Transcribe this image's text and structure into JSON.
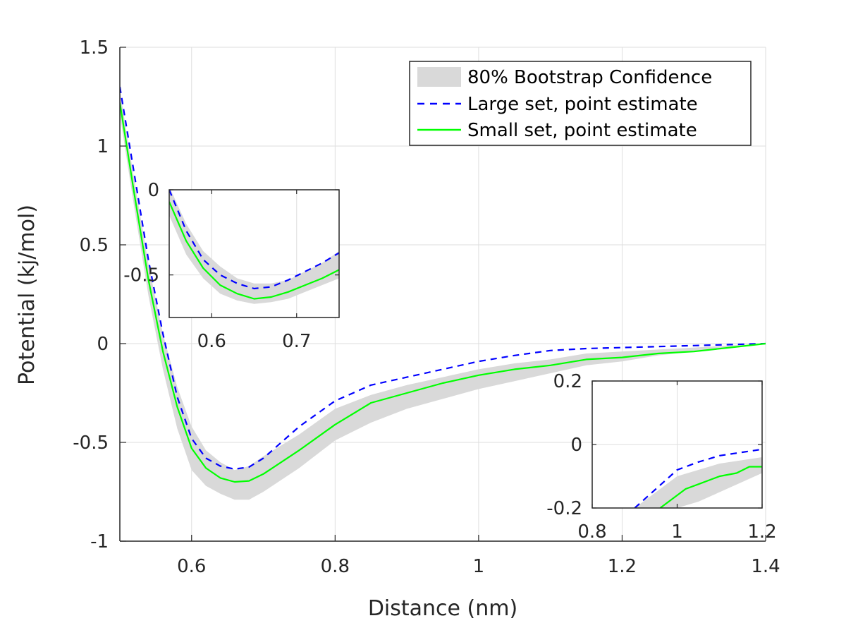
{
  "chart_data": [
    {
      "id": "main",
      "type": "line",
      "xlabel": "Distance (nm)",
      "ylabel": "Potential (kj/mol)",
      "xlim": [
        0.5,
        1.4
      ],
      "ylim": [
        -1,
        1.5
      ],
      "xticks": [
        0.6,
        0.8,
        1,
        1.2,
        1.4
      ],
      "xtick_labels": [
        "0.6",
        "0.8",
        "1",
        "1.2",
        "1.4"
      ],
      "yticks": [
        -1,
        -0.5,
        0,
        0.5,
        1,
        1.5
      ],
      "ytick_labels": [
        "-1",
        "-0.5",
        "0",
        "0.5",
        "1",
        "1.5"
      ],
      "grid": true,
      "legend_position": "top-right",
      "legend": [
        "80% Bootstrap Confidence",
        "Large set, point estimate",
        "Small set, point estimate"
      ],
      "band": {
        "name": "80% Bootstrap Confidence",
        "x": [
          0.5,
          0.52,
          0.54,
          0.56,
          0.58,
          0.6,
          0.62,
          0.64,
          0.66,
          0.68,
          0.7,
          0.75,
          0.8,
          0.85,
          0.9,
          0.95,
          1.0,
          1.05,
          1.1,
          1.15,
          1.2,
          1.25,
          1.3,
          1.35,
          1.4
        ],
        "upper": [
          1.28,
          0.83,
          0.4,
          0.05,
          -0.22,
          -0.42,
          -0.54,
          -0.6,
          -0.64,
          -0.62,
          -0.57,
          -0.46,
          -0.33,
          -0.26,
          -0.21,
          -0.17,
          -0.13,
          -0.1,
          -0.08,
          -0.05,
          -0.04,
          -0.03,
          -0.02,
          -0.01,
          0.0
        ],
        "lower": [
          1.16,
          0.69,
          0.24,
          -0.13,
          -0.43,
          -0.64,
          -0.72,
          -0.76,
          -0.79,
          -0.79,
          -0.75,
          -0.63,
          -0.49,
          -0.4,
          -0.33,
          -0.28,
          -0.23,
          -0.19,
          -0.15,
          -0.11,
          -0.09,
          -0.06,
          -0.04,
          -0.02,
          0.0
        ]
      },
      "series": [
        {
          "name": "Large set, point estimate",
          "color": "#0000ff",
          "style": "dashed",
          "x": [
            0.5,
            0.52,
            0.54,
            0.56,
            0.58,
            0.6,
            0.62,
            0.64,
            0.66,
            0.68,
            0.7,
            0.75,
            0.8,
            0.85,
            0.9,
            0.95,
            1.0,
            1.05,
            1.1,
            1.15,
            1.2,
            1.25,
            1.3,
            1.35,
            1.4
          ],
          "y": [
            1.3,
            0.86,
            0.42,
            0.05,
            -0.27,
            -0.48,
            -0.58,
            -0.62,
            -0.635,
            -0.625,
            -0.58,
            -0.42,
            -0.29,
            -0.21,
            -0.17,
            -0.13,
            -0.09,
            -0.06,
            -0.035,
            -0.025,
            -0.02,
            -0.015,
            -0.01,
            -0.005,
            0.0
          ]
        },
        {
          "name": "Small set, point estimate",
          "color": "#00ff00",
          "style": "solid",
          "x": [
            0.5,
            0.52,
            0.54,
            0.56,
            0.58,
            0.6,
            0.62,
            0.64,
            0.66,
            0.68,
            0.7,
            0.75,
            0.8,
            0.85,
            0.9,
            0.95,
            1.0,
            1.05,
            1.1,
            1.15,
            1.2,
            1.25,
            1.3,
            1.35,
            1.4
          ],
          "y": [
            1.22,
            0.76,
            0.32,
            -0.04,
            -0.32,
            -0.53,
            -0.63,
            -0.68,
            -0.7,
            -0.695,
            -0.66,
            -0.54,
            -0.41,
            -0.3,
            -0.25,
            -0.2,
            -0.16,
            -0.13,
            -0.11,
            -0.08,
            -0.07,
            -0.05,
            -0.04,
            -0.02,
            0.0
          ]
        }
      ]
    },
    {
      "id": "inset-minimum",
      "type": "line",
      "xlim": [
        0.55,
        0.75
      ],
      "ylim": [
        -0.75,
        0.0
      ],
      "xticks": [
        0.6,
        0.7
      ],
      "xtick_labels": [
        "0.6",
        "0.7"
      ],
      "yticks": [
        0,
        -0.5
      ],
      "ytick_labels": [
        "0",
        "-0.5"
      ],
      "grid": true,
      "band": {
        "x": [
          0.55,
          0.57,
          0.59,
          0.61,
          0.63,
          0.65,
          0.67,
          0.69,
          0.71,
          0.73,
          0.75
        ],
        "upper": [
          0.02,
          -0.2,
          -0.36,
          -0.45,
          -0.52,
          -0.55,
          -0.55,
          -0.53,
          -0.48,
          -0.43,
          -0.36
        ],
        "lower": [
          -0.15,
          -0.38,
          -0.52,
          -0.61,
          -0.65,
          -0.67,
          -0.66,
          -0.64,
          -0.6,
          -0.56,
          -0.52
        ]
      },
      "series": [
        {
          "name": "Large set, point estimate",
          "color": "#0000ff",
          "style": "dashed",
          "x": [
            0.55,
            0.57,
            0.59,
            0.61,
            0.63,
            0.65,
            0.67,
            0.69,
            0.71,
            0.73,
            0.75
          ],
          "y": [
            0.0,
            -0.24,
            -0.41,
            -0.5,
            -0.55,
            -0.58,
            -0.57,
            -0.53,
            -0.48,
            -0.43,
            -0.37
          ]
        },
        {
          "name": "Small set, point estimate",
          "color": "#00ff00",
          "style": "solid",
          "x": [
            0.55,
            0.57,
            0.59,
            0.61,
            0.63,
            0.65,
            0.67,
            0.69,
            0.71,
            0.73,
            0.75
          ],
          "y": [
            -0.07,
            -0.3,
            -0.46,
            -0.56,
            -0.61,
            -0.64,
            -0.63,
            -0.6,
            -0.56,
            -0.52,
            -0.47
          ]
        }
      ]
    },
    {
      "id": "inset-tail",
      "type": "line",
      "xlim": [
        0.8,
        1.2
      ],
      "ylim": [
        -0.2,
        0.2
      ],
      "xticks": [
        0.8,
        1,
        1.2
      ],
      "xtick_labels": [
        "0.8",
        "1",
        "1.2"
      ],
      "yticks": [
        -0.2,
        0,
        0.2
      ],
      "ytick_labels": [
        "-0.2",
        "0",
        "0.2"
      ],
      "grid": true,
      "band": {
        "x": [
          0.9,
          0.95,
          1.0,
          1.05,
          1.1,
          1.15,
          1.2
        ],
        "upper": [
          -0.2,
          -0.15,
          -0.1,
          -0.08,
          -0.06,
          -0.05,
          -0.04
        ],
        "lower": [
          -0.2,
          -0.2,
          -0.2,
          -0.18,
          -0.15,
          -0.12,
          -0.09
        ]
      },
      "series": [
        {
          "name": "Large set, point estimate",
          "color": "#0000ff",
          "style": "dashed",
          "x": [
            0.9,
            0.95,
            1.0,
            1.05,
            1.1,
            1.15,
            1.2
          ],
          "y": [
            -0.2,
            -0.14,
            -0.08,
            -0.055,
            -0.035,
            -0.025,
            -0.015
          ]
        },
        {
          "name": "Small set, point estimate",
          "color": "#00ff00",
          "style": "solid",
          "x": [
            0.96,
            1.0,
            1.02,
            1.05,
            1.08,
            1.1,
            1.14,
            1.17,
            1.2
          ],
          "y": [
            -0.2,
            -0.16,
            -0.14,
            -0.125,
            -0.11,
            -0.1,
            -0.09,
            -0.07,
            -0.07
          ]
        }
      ]
    }
  ],
  "colors": {
    "band": "#d9d9d9",
    "grid": "#dedede",
    "axis": "#262626"
  }
}
